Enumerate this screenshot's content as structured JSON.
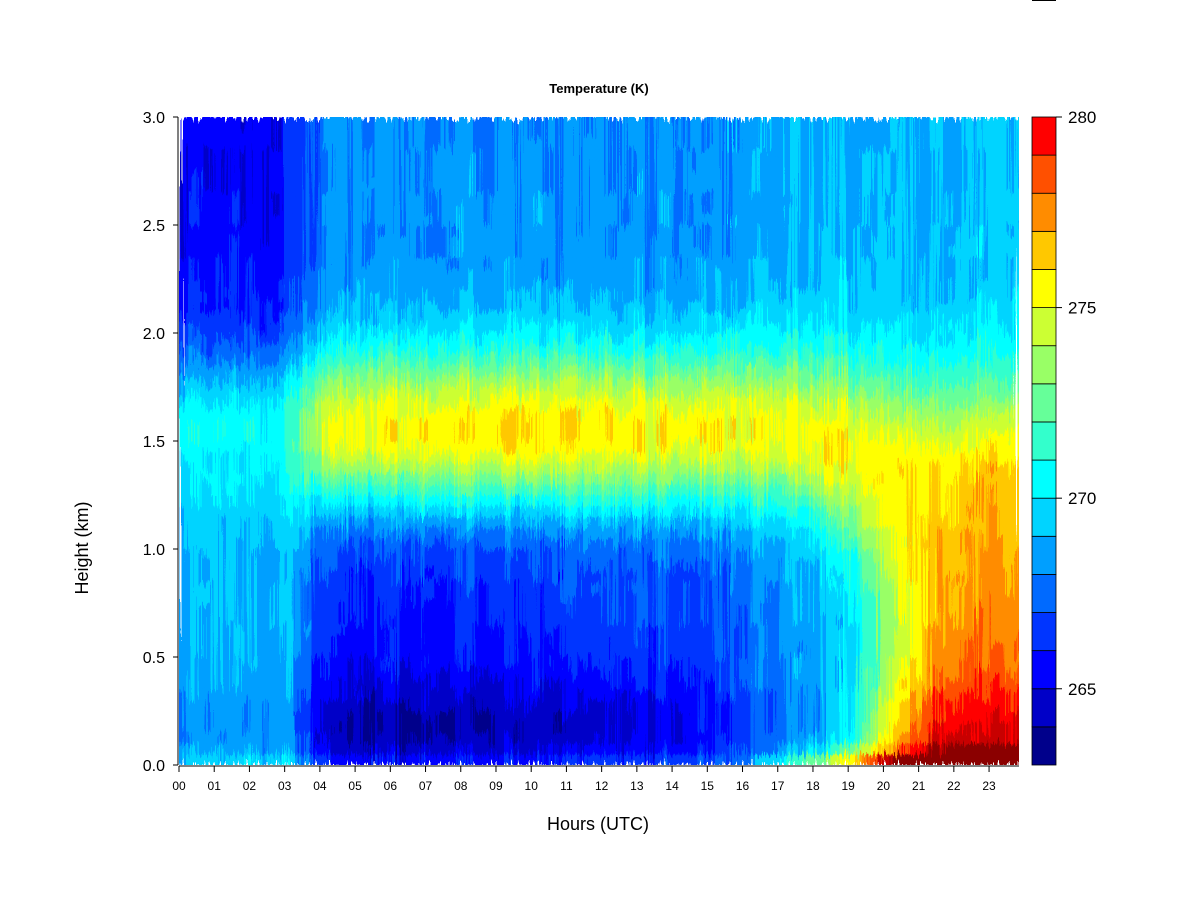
{
  "chart_data": {
    "type": "heatmap",
    "title": "Temperature (K)",
    "xlabel": "Hours (UTC)",
    "ylabel": "Height (km)",
    "xlim": [
      0,
      23.85
    ],
    "ylim": [
      0.0,
      3.0
    ],
    "x_ticks": [
      "00",
      "01",
      "02",
      "03",
      "04",
      "05",
      "06",
      "07",
      "08",
      "09",
      "10",
      "11",
      "12",
      "13",
      "14",
      "15",
      "16",
      "17",
      "18",
      "19",
      "20",
      "21",
      "22",
      "23"
    ],
    "y_ticks": [
      "0.0",
      "0.5",
      "1.0",
      "1.5",
      "2.0",
      "2.5",
      "3.0"
    ],
    "y_tick_values": [
      0.0,
      0.5,
      1.0,
      1.5,
      2.0,
      2.5,
      3.0
    ],
    "colorbar": {
      "min": 263,
      "max": 280,
      "step": 1,
      "tick_labels": [
        "265",
        "270",
        "275",
        "280"
      ],
      "tick_values": [
        265,
        270,
        275,
        280
      ],
      "colors": [
        "#00008B",
        "#0000C8",
        "#0000FF",
        "#0035FF",
        "#006AFF",
        "#009FFF",
        "#00D4FF",
        "#00FFFF",
        "#33FFCC",
        "#66FF99",
        "#99FF66",
        "#CCFF33",
        "#FFFF00",
        "#FFC800",
        "#FF8C00",
        "#FF5000",
        "#FF0000",
        "#C80000",
        "#8B0000"
      ]
    }
  }
}
